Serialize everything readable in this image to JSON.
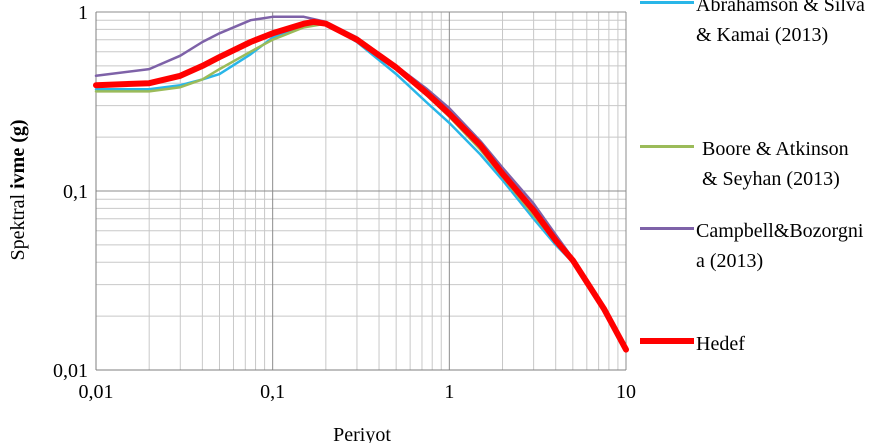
{
  "chart_data": {
    "type": "line",
    "title": "",
    "xlabel": "Periyot",
    "ylabel_plain": "Spektral ",
    "ylabel_bold": "ivme (g)",
    "x_scale": "log",
    "y_scale": "log",
    "xlim": [
      0.01,
      10
    ],
    "ylim": [
      0.01,
      1
    ],
    "x_ticks": [
      0.01,
      0.1,
      1,
      10
    ],
    "x_tick_labels": [
      "0,01",
      "0,1",
      "1",
      "10"
    ],
    "y_ticks": [
      0.01,
      0.1,
      1
    ],
    "y_tick_labels": [
      "0,01",
      "0,1",
      "1"
    ],
    "grid": true,
    "legend_position": "right",
    "series": [
      {
        "name": "Abrahamson & Silva & Kamai (2013)",
        "color": "#29b6e8",
        "points": [
          [
            0.01,
            0.37
          ],
          [
            0.02,
            0.37
          ],
          [
            0.03,
            0.39
          ],
          [
            0.04,
            0.42
          ],
          [
            0.05,
            0.45
          ],
          [
            0.075,
            0.58
          ],
          [
            0.1,
            0.72
          ],
          [
            0.15,
            0.84
          ],
          [
            0.2,
            0.86
          ],
          [
            0.3,
            0.68
          ],
          [
            0.5,
            0.45
          ],
          [
            0.75,
            0.31
          ],
          [
            1,
            0.24
          ],
          [
            1.5,
            0.16
          ],
          [
            2,
            0.115
          ],
          [
            3,
            0.07
          ],
          [
            4,
            0.05
          ],
          [
            5,
            0.04
          ],
          [
            7.5,
            0.022
          ],
          [
            10,
            0.013
          ]
        ]
      },
      {
        "name": "Boore & Atkinson & Seyhan (2013)",
        "color": "#9bbb59",
        "points": [
          [
            0.01,
            0.36
          ],
          [
            0.02,
            0.36
          ],
          [
            0.03,
            0.38
          ],
          [
            0.04,
            0.42
          ],
          [
            0.05,
            0.48
          ],
          [
            0.075,
            0.6
          ],
          [
            0.1,
            0.7
          ],
          [
            0.15,
            0.82
          ],
          [
            0.2,
            0.86
          ],
          [
            0.3,
            0.72
          ],
          [
            0.5,
            0.48
          ],
          [
            0.75,
            0.34
          ],
          [
            1,
            0.26
          ],
          [
            1.5,
            0.17
          ],
          [
            2,
            0.12
          ],
          [
            3,
            0.073
          ],
          [
            4,
            0.052
          ],
          [
            5,
            0.041
          ],
          [
            7.5,
            0.022
          ],
          [
            10,
            0.013
          ]
        ]
      },
      {
        "name": "Campbell&Bozorgnia (2013)",
        "color": "#7e62a8",
        "points": [
          [
            0.01,
            0.44
          ],
          [
            0.02,
            0.48
          ],
          [
            0.03,
            0.57
          ],
          [
            0.04,
            0.68
          ],
          [
            0.05,
            0.76
          ],
          [
            0.075,
            0.9
          ],
          [
            0.1,
            0.94
          ],
          [
            0.15,
            0.94
          ],
          [
            0.2,
            0.88
          ],
          [
            0.3,
            0.72
          ],
          [
            0.5,
            0.5
          ],
          [
            0.75,
            0.37
          ],
          [
            1,
            0.29
          ],
          [
            1.5,
            0.19
          ],
          [
            2,
            0.135
          ],
          [
            3,
            0.085
          ],
          [
            4,
            0.057
          ],
          [
            5,
            0.042
          ],
          [
            7.5,
            0.022
          ],
          [
            10,
            0.013
          ]
        ]
      },
      {
        "name": "Hedef",
        "color": "#ff0000",
        "points": [
          [
            0.01,
            0.39
          ],
          [
            0.02,
            0.4
          ],
          [
            0.03,
            0.44
          ],
          [
            0.04,
            0.5
          ],
          [
            0.05,
            0.56
          ],
          [
            0.075,
            0.68
          ],
          [
            0.1,
            0.76
          ],
          [
            0.15,
            0.86
          ],
          [
            0.17,
            0.88
          ],
          [
            0.2,
            0.86
          ],
          [
            0.3,
            0.7
          ],
          [
            0.5,
            0.49
          ],
          [
            0.75,
            0.35
          ],
          [
            1,
            0.27
          ],
          [
            1.5,
            0.18
          ],
          [
            2,
            0.125
          ],
          [
            3,
            0.078
          ],
          [
            4,
            0.053
          ],
          [
            5,
            0.041
          ],
          [
            7.5,
            0.022
          ],
          [
            10,
            0.013
          ]
        ]
      }
    ]
  }
}
